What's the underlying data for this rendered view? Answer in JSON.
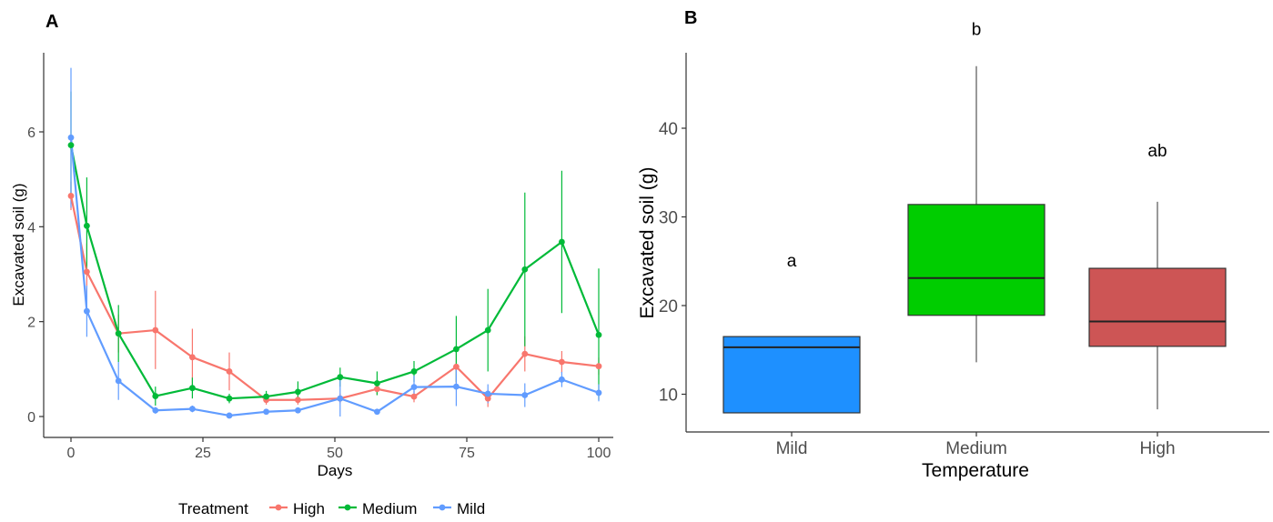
{
  "panels": {
    "a_label": "A",
    "b_label": "B"
  },
  "chart_data": [
    {
      "type": "line",
      "panel": "A",
      "xlabel": "Days",
      "ylabel": "Excavated soil (g)",
      "xlim": [
        0,
        100
      ],
      "ylim": [
        0,
        7.3
      ],
      "xticks": [
        0,
        25,
        50,
        75,
        100
      ],
      "xtick_labels": [
        "0",
        "25",
        "50",
        "75",
        "100"
      ],
      "yticks": [
        0,
        2,
        4,
        6
      ],
      "ytick_labels": [
        "0",
        "2",
        "4",
        "6"
      ],
      "grid": false,
      "legend": {
        "title": "Treatment",
        "placement": "bottom",
        "entries": [
          "High",
          "Medium",
          "Mild"
        ]
      },
      "series": [
        {
          "name": "High",
          "color": "#f8766d",
          "x": [
            0,
            3,
            9,
            16,
            23,
            30,
            37,
            43,
            51,
            58,
            65,
            73,
            79,
            86,
            93,
            100
          ],
          "values": [
            4.65,
            3.05,
            1.75,
            1.82,
            1.25,
            0.95,
            0.35,
            0.35,
            0.38,
            0.58,
            0.42,
            1.05,
            0.38,
            1.32,
            1.15,
            1.06
          ],
          "err_low": [
            4.35,
            2.45,
            1.35,
            1.0,
            0.65,
            0.55,
            0.25,
            0.25,
            0.28,
            0.45,
            0.3,
            0.62,
            0.2,
            0.95,
            0.92,
            0.88
          ],
          "err_high": [
            4.95,
            3.65,
            2.15,
            2.65,
            1.85,
            1.35,
            0.45,
            0.45,
            0.48,
            0.71,
            0.54,
            1.48,
            0.56,
            1.69,
            1.38,
            1.24
          ]
        },
        {
          "name": "Medium",
          "color": "#00ba38",
          "x": [
            0,
            3,
            9,
            16,
            23,
            30,
            37,
            43,
            51,
            58,
            65,
            73,
            79,
            86,
            93,
            100
          ],
          "values": [
            5.72,
            4.02,
            1.75,
            0.43,
            0.6,
            0.38,
            0.42,
            0.52,
            0.83,
            0.7,
            0.95,
            1.42,
            1.82,
            3.1,
            3.68,
            1.72
          ],
          "err_low": [
            4.6,
            3.0,
            1.15,
            0.23,
            0.38,
            0.28,
            0.3,
            0.3,
            0.63,
            0.45,
            0.73,
            0.72,
            0.95,
            1.48,
            2.18,
            0.35
          ],
          "err_high": [
            6.85,
            5.04,
            2.35,
            0.63,
            0.82,
            0.48,
            0.54,
            0.74,
            1.03,
            0.95,
            1.17,
            2.12,
            2.69,
            4.72,
            5.18,
            3.12
          ]
        },
        {
          "name": "Mild",
          "color": "#619cff",
          "x": [
            0,
            3,
            9,
            16,
            23,
            30,
            37,
            43,
            51,
            58,
            65,
            73,
            79,
            86,
            93,
            100
          ],
          "values": [
            5.88,
            2.22,
            0.75,
            0.13,
            0.16,
            0.02,
            0.1,
            0.13,
            0.38,
            0.1,
            0.62,
            0.63,
            0.48,
            0.45,
            0.78,
            0.5
          ],
          "err_low": [
            4.4,
            1.68,
            0.35,
            0.06,
            0.09,
            0.0,
            0.05,
            0.08,
            0.0,
            0.05,
            0.38,
            0.22,
            0.28,
            0.2,
            0.62,
            0.32
          ],
          "err_high": [
            7.35,
            2.76,
            1.15,
            0.2,
            0.23,
            0.04,
            0.15,
            0.18,
            0.8,
            0.15,
            0.86,
            1.04,
            0.68,
            0.7,
            0.94,
            0.68
          ]
        }
      ]
    },
    {
      "type": "box",
      "panel": "B",
      "xlabel": "Temperature",
      "ylabel": "Excavated soil (g)",
      "ylim": [
        5.5,
        49.5
      ],
      "yticks": [
        10,
        20,
        30,
        40
      ],
      "ytick_labels": [
        "10",
        "20",
        "30",
        "40"
      ],
      "grid": false,
      "categories": [
        "Mild",
        "Medium",
        "High"
      ],
      "boxes": [
        {
          "name": "Mild",
          "color": "#1e90ff",
          "whisker_low": 7.9,
          "q1": 7.9,
          "median": 15.3,
          "q3": 16.5,
          "whisker_high": 16.5,
          "significance": "a",
          "sig_y": 24.4
        },
        {
          "name": "Medium",
          "color": "#00cd00",
          "whisker_low": 13.6,
          "q1": 18.9,
          "median": 23.1,
          "q3": 31.4,
          "whisker_high": 47.0,
          "significance": "b",
          "sig_y": 50.5
        },
        {
          "name": "High",
          "color": "#cd5555",
          "whisker_low": 8.3,
          "q1": 15.4,
          "median": 18.2,
          "q3": 24.2,
          "whisker_high": 31.7,
          "significance": "ab",
          "sig_y": 36.8
        }
      ]
    }
  ]
}
